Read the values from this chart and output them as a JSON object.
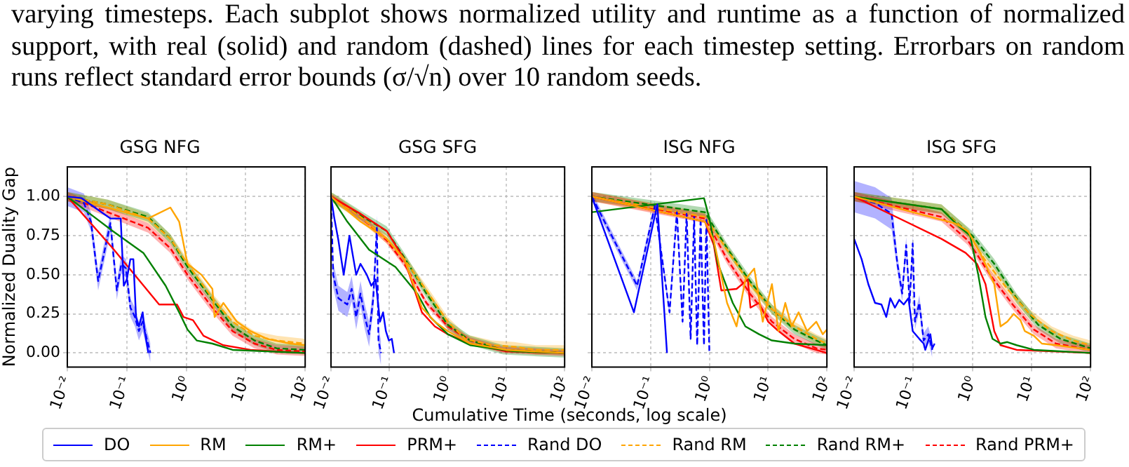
{
  "chart_data": [
    {
      "type": "line",
      "title": "GSG NFG",
      "ylabel": "Normalized Duality Gap",
      "log": "x",
      "grid": true,
      "legend": "bottom",
      "annotations": [
        "varying timesteps. Each subplot shows normalized utility and runtime as a function of normalized support, with real (solid) and random (dashed) lines for each timestep setting. Errorbars on random runs reflect standard error bounds (σ/√n) over 10 random seeds."
      ],
      "xlim": [
        0.01,
        100
      ],
      "xticks": [
        {
          "value": 0.01,
          "label": "10⁻²"
        },
        {
          "value": 0.1,
          "label": "10⁻¹"
        },
        {
          "value": 1,
          "label": "10⁰"
        },
        {
          "value": 10,
          "label": "10¹"
        },
        {
          "value": 100,
          "label": "10²"
        }
      ],
      "ylim": [
        -0.09,
        1.19
      ],
      "yticks": [
        {
          "value": 0,
          "label": "0.00"
        },
        {
          "value": 0.25,
          "label": "0.25"
        },
        {
          "value": 0.5,
          "label": "0.50"
        },
        {
          "value": 0.75,
          "label": "0.75"
        },
        {
          "value": 1,
          "label": "1.00"
        }
      ],
      "series": [
        {
          "name": "DO",
          "color": "#0000ff",
          "line_style": "solid",
          "x": [
            0.01,
            0.0173,
            0.0316,
            0.053,
            0.079,
            0.089,
            0.1,
            0.115,
            0.129,
            0.143,
            0.16,
            0.185,
            0.2,
            0.23
          ],
          "values": [
            1,
            0.99,
            0.92,
            0.86,
            0.86,
            0.43,
            0.47,
            0.6,
            0.6,
            0.23,
            0.17,
            0.26,
            0.14,
            0
          ]
        },
        {
          "name": "RM",
          "color": "#ffa500",
          "line_style": "solid",
          "x": [
            0.01,
            0.228,
            0.54,
            0.76,
            1.05,
            1.8,
            2.75,
            3.0,
            4.2,
            7.1,
            12,
            23,
            56,
            100
          ],
          "values": [
            1,
            0.86,
            0.93,
            0.84,
            0.57,
            0.5,
            0.41,
            0.23,
            0.32,
            0.2,
            0.14,
            0.09,
            0.06,
            0.05
          ]
        },
        {
          "name": "RM+",
          "color": "#008000",
          "line_style": "solid",
          "x": [
            0.01,
            0.024,
            0.058,
            0.19,
            0.45,
            0.76,
            1.05,
            1.5,
            2.75,
            6,
            100
          ],
          "values": [
            1,
            0.89,
            0.78,
            0.64,
            0.43,
            0.26,
            0.15,
            0.08,
            0.06,
            0.02,
            0
          ]
        },
        {
          "name": "PRM+",
          "color": "#ff0000",
          "line_style": "solid",
          "x": [
            0.01,
            0.058,
            0.35,
            0.7,
            0.9,
            1.3,
            1.95,
            4.2,
            12,
            100
          ],
          "values": [
            1,
            0.67,
            0.31,
            0.31,
            0.23,
            0.21,
            0.11,
            0.05,
            0.02,
            0
          ]
        },
        {
          "name": "Rand DO",
          "color": "#0000ff",
          "line_style": "dashed",
          "x": [
            0.01,
            0.019,
            0.025,
            0.033,
            0.053,
            0.068,
            0.081,
            0.097,
            0.115,
            0.137,
            0.16,
            0.185,
            0.22,
            0.25
          ],
          "values": [
            1,
            0.96,
            0.84,
            0.46,
            0.83,
            0.4,
            0.57,
            0.54,
            0.29,
            0.23,
            0.14,
            0.2,
            0.08,
            0
          ],
          "lower": [
            0.94,
            0.9,
            0.78,
            0.4,
            0.77,
            0.34,
            0.51,
            0.48,
            0.23,
            0.17,
            0.08,
            0.14,
            0.02,
            -0.06
          ],
          "upper": [
            1.06,
            1.02,
            0.9,
            0.52,
            0.89,
            0.46,
            0.63,
            0.6,
            0.35,
            0.29,
            0.2,
            0.26,
            0.14,
            0.06
          ]
        },
        {
          "name": "Rand RM",
          "color": "#ffa500",
          "line_style": "dashed",
          "x": [
            0.01,
            0.048,
            0.228,
            0.54,
            1.05,
            2.75,
            6,
            14,
            33,
            100
          ],
          "values": [
            1,
            0.95,
            0.86,
            0.73,
            0.57,
            0.35,
            0.2,
            0.11,
            0.08,
            0.06
          ],
          "lower": [
            0.97,
            0.92,
            0.83,
            0.7,
            0.54,
            0.32,
            0.17,
            0.08,
            0.05,
            0.03
          ],
          "upper": [
            1.03,
            0.98,
            0.89,
            0.76,
            0.6,
            0.38,
            0.23,
            0.14,
            0.11,
            0.09
          ]
        },
        {
          "name": "Rand RM+",
          "color": "#008000",
          "line_style": "dashed",
          "x": [
            0.01,
            0.048,
            0.228,
            0.54,
            1.05,
            2.75,
            6,
            14,
            33,
            100
          ],
          "values": [
            1,
            0.95,
            0.87,
            0.73,
            0.55,
            0.34,
            0.17,
            0.08,
            0.03,
            0.02
          ],
          "lower": [
            0.97,
            0.92,
            0.84,
            0.7,
            0.52,
            0.31,
            0.14,
            0.05,
            0,
            -0.01
          ],
          "upper": [
            1.03,
            0.98,
            0.9,
            0.76,
            0.58,
            0.37,
            0.2,
            0.11,
            0.06,
            0.05
          ]
        },
        {
          "name": "Rand PRM+",
          "color": "#ff0000",
          "line_style": "dashed",
          "x": [
            0.01,
            0.048,
            0.228,
            0.54,
            1.05,
            2.75,
            6,
            14,
            33,
            100
          ],
          "values": [
            1,
            0.9,
            0.8,
            0.67,
            0.5,
            0.29,
            0.14,
            0.06,
            0.02,
            0.01
          ],
          "lower": [
            0.97,
            0.87,
            0.77,
            0.64,
            0.47,
            0.26,
            0.11,
            0.03,
            -0.01,
            -0.02
          ],
          "upper": [
            1.03,
            0.93,
            0.83,
            0.7,
            0.53,
            0.32,
            0.17,
            0.09,
            0.05,
            0.04
          ]
        }
      ]
    },
    {
      "type": "line",
      "title": "GSG SFG",
      "xlabel": "Cumulative Time (seconds, log scale)",
      "log": "x",
      "grid": true,
      "tick_labels": "x",
      "xlim": [
        0.01,
        100
      ],
      "xticks": [
        {
          "value": 0.01,
          "label": "10⁻²"
        },
        {
          "value": 0.1,
          "label": "10⁻¹"
        },
        {
          "value": 1,
          "label": "10⁰"
        },
        {
          "value": 10,
          "label": "10¹"
        },
        {
          "value": 100,
          "label": "10²"
        }
      ],
      "ylim": [
        -0.09,
        1.19
      ],
      "yticks": [
        0,
        0.25,
        0.5,
        0.75,
        1
      ],
      "series": [
        {
          "color": "#0000ff",
          "line_style": "solid",
          "x": [
            0.01,
            0.0113,
            0.0134,
            0.0165,
            0.0207,
            0.027,
            0.032,
            0.041,
            0.049,
            0.058,
            0.069,
            0.078,
            0.087,
            0.098,
            0.11,
            0.12
          ],
          "values": [
            1,
            0.87,
            0.72,
            0.5,
            0.75,
            0.5,
            0.57,
            0.5,
            0.43,
            0.47,
            0.2,
            0.26,
            0.14,
            0.08,
            0.09,
            0
          ]
        },
        {
          "color": "#ffa500",
          "line_style": "solid",
          "x": [
            0.01,
            0.032,
            0.09,
            0.18,
            0.36,
            0.6,
            1,
            2.4,
            10,
            100
          ],
          "values": [
            1,
            0.84,
            0.73,
            0.6,
            0.29,
            0.2,
            0.14,
            0.06,
            0.02,
            0
          ]
        },
        {
          "color": "#008000",
          "line_style": "solid",
          "x": [
            0.01,
            0.019,
            0.045,
            0.127,
            0.3,
            0.5,
            1,
            2.4,
            13.6,
            100
          ],
          "values": [
            1,
            0.84,
            0.66,
            0.55,
            0.38,
            0.23,
            0.12,
            0.05,
            0.01,
            0
          ]
        },
        {
          "color": "#ff0000",
          "line_style": "solid",
          "x": [
            0.01,
            0.032,
            0.09,
            0.18,
            0.36,
            0.6,
            1,
            2.4,
            10,
            100
          ],
          "values": [
            1,
            0.89,
            0.78,
            0.6,
            0.26,
            0.17,
            0.12,
            0.06,
            0.01,
            0
          ]
        },
        {
          "color": "#0000ff",
          "line_style": "dashed",
          "x": [
            0.01,
            0.0109,
            0.0134,
            0.019,
            0.0226,
            0.027,
            0.032,
            0.038,
            0.045,
            0.053,
            0.061,
            0.065,
            0.072
          ],
          "values": [
            1,
            0.5,
            0.35,
            0.31,
            0.41,
            0.23,
            0.38,
            0.23,
            0.12,
            0.35,
            0.8,
            0.08,
            0
          ],
          "lower": [
            0.92,
            0.42,
            0.27,
            0.23,
            0.33,
            0.15,
            0.3,
            0.15,
            0.04,
            0.27,
            0.72,
            0,
            -0.08
          ],
          "upper": [
            1.08,
            0.58,
            0.43,
            0.39,
            0.49,
            0.31,
            0.46,
            0.31,
            0.2,
            0.43,
            0.88,
            0.16,
            0.08
          ]
        },
        {
          "color": "#ffa500",
          "line_style": "dashed",
          "x": [
            0.01,
            0.032,
            0.09,
            0.18,
            0.43,
            1,
            2,
            5.7,
            13.6,
            32,
            100
          ],
          "values": [
            1,
            0.87,
            0.73,
            0.6,
            0.4,
            0.2,
            0.09,
            0.05,
            0.04,
            0.02,
            0.02
          ],
          "lower": [
            0.97,
            0.84,
            0.7,
            0.57,
            0.37,
            0.17,
            0.06,
            0.02,
            0.01,
            -0.01,
            -0.01
          ],
          "upper": [
            1.03,
            0.9,
            0.76,
            0.63,
            0.43,
            0.23,
            0.12,
            0.08,
            0.07,
            0.05,
            0.05
          ]
        },
        {
          "color": "#008000",
          "line_style": "dashed",
          "x": [
            0.01,
            0.032,
            0.09,
            0.18,
            0.43,
            1,
            2.4,
            8.9,
            100
          ],
          "values": [
            1,
            0.88,
            0.78,
            0.61,
            0.38,
            0.18,
            0.08,
            0.02,
            0
          ],
          "lower": [
            0.97,
            0.85,
            0.75,
            0.58,
            0.35,
            0.15,
            0.05,
            -0.01,
            -0.03
          ],
          "upper": [
            1.03,
            0.91,
            0.81,
            0.64,
            0.41,
            0.21,
            0.11,
            0.05,
            0.03
          ]
        },
        {
          "color": "#ff0000",
          "line_style": "dashed",
          "x": [
            0.01,
            0.032,
            0.09,
            0.18,
            0.43,
            1,
            2.4,
            8.9,
            100
          ],
          "values": [
            1,
            0.87,
            0.72,
            0.57,
            0.32,
            0.17,
            0.08,
            0.02,
            0
          ],
          "lower": [
            0.98,
            0.85,
            0.7,
            0.55,
            0.3,
            0.15,
            0.06,
            0,
            -0.02
          ],
          "upper": [
            1.02,
            0.89,
            0.74,
            0.59,
            0.34,
            0.19,
            0.1,
            0.04,
            0.02
          ]
        }
      ]
    },
    {
      "type": "line",
      "title": "ISG NFG",
      "log": "x",
      "grid": true,
      "tick_labels": "x",
      "xlim": [
        0.01,
        100
      ],
      "xticks": [
        {
          "value": 0.01,
          "label": "10⁻²"
        },
        {
          "value": 0.1,
          "label": "10⁻¹"
        },
        {
          "value": 1,
          "label": "10⁰"
        },
        {
          "value": 10,
          "label": "10¹"
        },
        {
          "value": 100,
          "label": "10²"
        }
      ],
      "ylim": [
        -0.09,
        1.19
      ],
      "yticks": [
        0,
        0.25,
        0.5,
        0.75,
        1
      ],
      "series": [
        {
          "color": "#0000ff",
          "line_style": "solid",
          "x": [
            0.01,
            0.052,
            0.13,
            0.19
          ],
          "values": [
            1,
            0.26,
            0.95,
            0
          ]
        },
        {
          "color": "#ffa500",
          "line_style": "solid",
          "x": [
            0.01,
            0.84,
            1.19,
            2,
            2.9,
            4.1,
            5.8,
            8.1,
            11.6,
            15,
            19.6,
            25,
            33,
            46,
            66,
            85,
            100
          ],
          "values": [
            1,
            0.84,
            0.72,
            0.32,
            0.17,
            0.47,
            0.54,
            0.2,
            0.44,
            0.14,
            0.32,
            0.17,
            0.26,
            0.14,
            0.2,
            0.12,
            0.15
          ]
        },
        {
          "color": "#008000",
          "line_style": "solid",
          "x": [
            0.01,
            0.81,
            1.0,
            1.4,
            2.5,
            4.1,
            7,
            11.6,
            28,
            100
          ],
          "values": [
            0.9,
            0.99,
            0.86,
            0.57,
            0.32,
            0.17,
            0.12,
            0.08,
            0.06,
            0.05
          ]
        },
        {
          "color": "#ff0000",
          "line_style": "solid",
          "x": [
            0.01,
            0.84,
            1.19,
            1.6,
            2.9,
            4.5,
            5,
            7,
            10,
            14,
            28,
            100
          ],
          "values": [
            1,
            0.84,
            0.69,
            0.4,
            0.41,
            0.47,
            0.29,
            0.32,
            0.2,
            0.15,
            0.06,
            0
          ]
        },
        {
          "color": "#0000ff",
          "line_style": "dashed",
          "x": [
            0.01,
            0.059,
            0.118,
            0.21,
            0.28,
            0.35,
            0.41,
            0.48,
            0.55,
            0.62,
            0.71,
            0.81,
            0.89,
            1.0
          ],
          "values": [
            1,
            0.43,
            0.94,
            0.26,
            0.9,
            0.2,
            0.89,
            0.09,
            0.87,
            0.05,
            0.86,
            0.05,
            0.86,
            0
          ],
          "lower": [
            0.97,
            0.4,
            0.91,
            0.23,
            0.87,
            0.17,
            0.86,
            0.06,
            0.84,
            0.02,
            0.83,
            0.02,
            0.83,
            -0.03
          ],
          "upper": [
            1.03,
            0.46,
            0.97,
            0.29,
            0.93,
            0.23,
            0.92,
            0.12,
            0.9,
            0.08,
            0.89,
            0.08,
            0.89,
            0.03
          ]
        },
        {
          "color": "#ffa500",
          "line_style": "dashed",
          "x": [
            0.01,
            0.84,
            2,
            4.9,
            11.6,
            28,
            66,
            100
          ],
          "values": [
            1,
            0.87,
            0.66,
            0.44,
            0.28,
            0.17,
            0.09,
            0.06
          ],
          "lower": [
            0.97,
            0.84,
            0.63,
            0.41,
            0.25,
            0.14,
            0.06,
            0.03
          ],
          "upper": [
            1.03,
            0.9,
            0.69,
            0.47,
            0.31,
            0.2,
            0.12,
            0.09
          ]
        },
        {
          "color": "#008000",
          "line_style": "dashed",
          "x": [
            0.01,
            0.84,
            2,
            4.9,
            11.6,
            28,
            66,
            100
          ],
          "values": [
            1,
            0.9,
            0.67,
            0.46,
            0.28,
            0.15,
            0.08,
            0.05
          ],
          "lower": [
            0.97,
            0.87,
            0.64,
            0.43,
            0.25,
            0.12,
            0.05,
            0.02
          ],
          "upper": [
            1.03,
            0.93,
            0.7,
            0.49,
            0.31,
            0.18,
            0.11,
            0.08
          ]
        },
        {
          "color": "#ff0000",
          "line_style": "dashed",
          "x": [
            0.01,
            0.84,
            2,
            4.9,
            11.6,
            28,
            66,
            100
          ],
          "values": [
            1,
            0.86,
            0.6,
            0.38,
            0.2,
            0.09,
            0.03,
            0.02
          ],
          "lower": [
            0.97,
            0.83,
            0.57,
            0.35,
            0.17,
            0.06,
            0,
            -0.01
          ],
          "upper": [
            1.03,
            0.89,
            0.63,
            0.41,
            0.23,
            0.12,
            0.06,
            0.05
          ]
        }
      ]
    },
    {
      "type": "line",
      "title": "ISG SFG",
      "log": "x",
      "grid": true,
      "tick_labels": "x",
      "xlim": [
        0.01,
        100
      ],
      "xticks": [
        {
          "value": 0.01,
          "label": "10⁻²"
        },
        {
          "value": 0.1,
          "label": "10⁻¹"
        },
        {
          "value": 1,
          "label": "10⁰"
        },
        {
          "value": 10,
          "label": "10¹"
        },
        {
          "value": 100,
          "label": "10²"
        }
      ],
      "ylim": [
        -0.09,
        1.19
      ],
      "yticks": [
        0,
        0.25,
        0.5,
        0.75,
        1
      ],
      "series": [
        {
          "color": "#0000ff",
          "line_style": "solid",
          "x": [
            0.01,
            0.0134,
            0.0174,
            0.0226,
            0.029,
            0.035,
            0.041,
            0.049,
            0.058,
            0.069,
            0.083,
            0.098,
            0.127,
            0.15,
            0.16,
            0.195,
            0.21,
            0.23
          ],
          "values": [
            0.73,
            0.6,
            0.44,
            0.32,
            0.31,
            0.23,
            0.35,
            0.29,
            0.34,
            0.31,
            0.35,
            0.14,
            0.09,
            0.06,
            0.02,
            0.12,
            0.03,
            0.06
          ]
        },
        {
          "color": "#ffa500",
          "line_style": "solid",
          "x": [
            0.01,
            0.5,
            0.84,
            1.4,
            2.35,
            3,
            3.9,
            5,
            6.5,
            7.7,
            11,
            15,
            26,
            100
          ],
          "values": [
            1,
            0.83,
            0.78,
            0.63,
            0.44,
            0.17,
            0.2,
            0.25,
            0.21,
            0.14,
            0.11,
            0.06,
            0.05,
            0.02
          ]
        },
        {
          "color": "#008000",
          "line_style": "solid",
          "x": [
            0.01,
            0.3,
            0.59,
            0.92,
            1.26,
            1.67,
            2.2,
            3,
            3.9,
            5.6,
            11,
            100
          ],
          "values": [
            1,
            0.92,
            0.81,
            0.75,
            0.5,
            0.23,
            0.09,
            0.06,
            0.07,
            0.05,
            0.02,
            0
          ]
        },
        {
          "color": "#ff0000",
          "line_style": "solid",
          "x": [
            0.01,
            0.3,
            0.77,
            1.2,
            1.67,
            2.35,
            3,
            5.6,
            100
          ],
          "values": [
            1,
            0.73,
            0.64,
            0.57,
            0.44,
            0.14,
            0.05,
            0.02,
            0
          ]
        },
        {
          "color": "#0000ff",
          "line_style": "dashed",
          "x": [
            0.01,
            0.0226,
            0.043,
            0.054,
            0.065,
            0.076,
            0.087,
            0.098,
            0.107,
            0.127,
            0.15,
            0.18,
            0.21
          ],
          "values": [
            1,
            0.96,
            0.89,
            0.57,
            0.38,
            0.69,
            0.32,
            0.7,
            0.2,
            0.32,
            0.08,
            0.12,
            0.02
          ],
          "lower": [
            0.9,
            0.86,
            0.79,
            0.52,
            0.33,
            0.64,
            0.27,
            0.65,
            0.15,
            0.27,
            0.03,
            0.07,
            -0.03
          ],
          "upper": [
            1.1,
            1.06,
            0.99,
            0.62,
            0.43,
            0.74,
            0.37,
            0.75,
            0.25,
            0.37,
            0.13,
            0.17,
            0.07
          ]
        },
        {
          "color": "#ffa500",
          "line_style": "dashed",
          "x": [
            0.01,
            0.3,
            0.84,
            1.6,
            3.9,
            9.3,
            22,
            51,
            100
          ],
          "values": [
            1,
            0.92,
            0.77,
            0.6,
            0.41,
            0.25,
            0.14,
            0.08,
            0.05
          ],
          "lower": [
            0.97,
            0.89,
            0.74,
            0.57,
            0.38,
            0.22,
            0.11,
            0.05,
            0.02
          ],
          "upper": [
            1.03,
            0.95,
            0.8,
            0.63,
            0.44,
            0.28,
            0.17,
            0.11,
            0.08
          ]
        },
        {
          "color": "#008000",
          "line_style": "dashed",
          "x": [
            0.01,
            0.3,
            1,
            2.35,
            5.6,
            13,
            31,
            100
          ],
          "values": [
            1,
            0.92,
            0.75,
            0.57,
            0.35,
            0.18,
            0.09,
            0.03
          ],
          "lower": [
            0.97,
            0.89,
            0.72,
            0.54,
            0.32,
            0.15,
            0.06,
            0
          ],
          "upper": [
            1.03,
            0.95,
            0.78,
            0.6,
            0.38,
            0.21,
            0.12,
            0.06
          ]
        },
        {
          "color": "#ff0000",
          "line_style": "dashed",
          "x": [
            0.01,
            0.3,
            0.84,
            2,
            4.8,
            11,
            26,
            100
          ],
          "values": [
            1,
            0.87,
            0.72,
            0.5,
            0.31,
            0.15,
            0.06,
            0.02
          ],
          "lower": [
            0.97,
            0.84,
            0.69,
            0.47,
            0.28,
            0.12,
            0.03,
            -0.01
          ],
          "upper": [
            1.03,
            0.9,
            0.75,
            0.53,
            0.34,
            0.18,
            0.09,
            0.05
          ]
        }
      ]
    }
  ]
}
